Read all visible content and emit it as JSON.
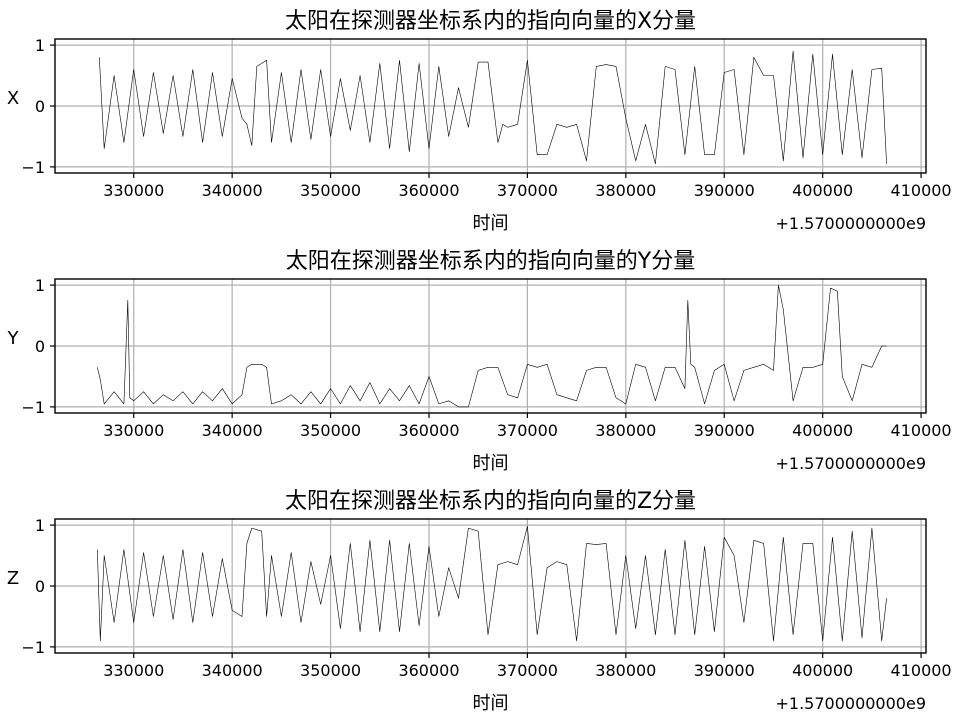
{
  "chart_data": [
    {
      "type": "line",
      "title": "太阳在探测器坐标系内的指向向量的X分量",
      "xlabel": "时间",
      "ylabel": "X",
      "x_offset_label": "+1.5700000000e9",
      "xlim": [
        322000,
        410500
      ],
      "ylim": [
        -1.1,
        1.1
      ],
      "xticks": [
        "330000",
        "340000",
        "350000",
        "360000",
        "370000",
        "380000",
        "390000",
        "400000",
        "410000"
      ],
      "yticks": [
        "1",
        "0",
        "−1"
      ],
      "grid": true,
      "line_color": "#000000",
      "series": [
        {
          "x": [
            326500,
            327000,
            328000,
            329000,
            330000,
            331000,
            332000,
            333000,
            334000,
            335000,
            336000,
            337000,
            338000,
            339000,
            340000,
            341000,
            341500,
            342000,
            342500,
            343000,
            343500,
            344000,
            345000,
            346000,
            347000,
            348000,
            349000,
            350000,
            351000,
            352000,
            353000,
            354000,
            355000,
            356000,
            357000,
            358000,
            359000,
            360000,
            361000,
            362000,
            363000,
            364000,
            365000,
            366000,
            367000,
            367500,
            368000,
            369000,
            370000,
            371000,
            372000,
            373000,
            374000,
            375000,
            376000,
            377000,
            378000,
            379000,
            380000,
            381000,
            382000,
            383000,
            384000,
            385000,
            386000,
            387000,
            388000,
            389000,
            390000,
            391000,
            392000,
            393000,
            394000,
            395000,
            396000,
            397000,
            398000,
            399000,
            400000,
            401000,
            402000,
            403000,
            404000,
            405000,
            406000,
            406500
          ],
          "y": [
            0.8,
            -0.7,
            0.5,
            -0.6,
            0.6,
            -0.5,
            0.55,
            -0.45,
            0.5,
            -0.5,
            0.6,
            -0.6,
            0.55,
            -0.5,
            0.45,
            -0.2,
            -0.3,
            -0.65,
            0.65,
            0.7,
            0.75,
            -0.6,
            0.55,
            -0.6,
            0.6,
            -0.55,
            0.6,
            -0.5,
            0.45,
            -0.4,
            0.5,
            -0.6,
            0.7,
            -0.7,
            0.75,
            -0.75,
            0.7,
            -0.7,
            0.65,
            -0.5,
            0.3,
            -0.35,
            0.72,
            0.72,
            -0.6,
            -0.3,
            -0.35,
            -0.3,
            0.75,
            -0.8,
            -0.8,
            -0.3,
            -0.35,
            -0.3,
            -0.9,
            0.65,
            0.68,
            0.65,
            -0.2,
            -0.9,
            -0.3,
            -0.95,
            0.65,
            0.6,
            -0.8,
            0.65,
            -0.8,
            -0.8,
            0.55,
            0.6,
            -0.8,
            0.8,
            0.5,
            0.5,
            -0.9,
            0.9,
            -0.85,
            0.85,
            -0.8,
            0.85,
            -0.8,
            0.6,
            -0.85,
            0.6,
            0.62,
            -0.95
          ]
        }
      ]
    },
    {
      "type": "line",
      "title": "太阳在探测器坐标系内的指向向量的Y分量",
      "xlabel": "时间",
      "ylabel": "Y",
      "x_offset_label": "+1.5700000000e9",
      "xlim": [
        322000,
        410500
      ],
      "ylim": [
        -1.1,
        1.1
      ],
      "xticks": [
        "330000",
        "340000",
        "350000",
        "360000",
        "370000",
        "380000",
        "390000",
        "400000",
        "410000"
      ],
      "yticks": [
        "1",
        "0",
        "−1"
      ],
      "grid": true,
      "line_color": "#000000",
      "series": [
        {
          "x": [
            326300,
            326600,
            327000,
            328000,
            329000,
            329400,
            329600,
            330000,
            331000,
            332000,
            333000,
            334000,
            335000,
            336000,
            337000,
            338000,
            339000,
            340000,
            341000,
            341500,
            342000,
            343000,
            343500,
            344000,
            345000,
            346000,
            347000,
            348000,
            349000,
            350000,
            351000,
            352000,
            353000,
            354000,
            355000,
            356000,
            357000,
            358000,
            359000,
            360000,
            361000,
            362000,
            363000,
            364000,
            365000,
            366000,
            367000,
            368000,
            369000,
            370000,
            371000,
            372000,
            373000,
            374000,
            375000,
            376000,
            377000,
            378000,
            379000,
            380000,
            381000,
            382000,
            383000,
            384000,
            385000,
            386000,
            386300,
            386600,
            387000,
            388000,
            389000,
            390000,
            391000,
            392000,
            393000,
            394000,
            395000,
            395500,
            396000,
            397000,
            398000,
            399000,
            400000,
            400800,
            401500,
            402000,
            403000,
            404000,
            405000,
            406000,
            406500
          ],
          "y": [
            -0.35,
            -0.55,
            -0.95,
            -0.75,
            -0.95,
            0.75,
            -0.85,
            -0.9,
            -0.75,
            -0.95,
            -0.8,
            -0.9,
            -0.75,
            -0.95,
            -0.75,
            -0.9,
            -0.7,
            -0.95,
            -0.8,
            -0.35,
            -0.3,
            -0.3,
            -0.35,
            -0.95,
            -0.9,
            -0.8,
            -0.95,
            -0.75,
            -0.95,
            -0.7,
            -0.95,
            -0.65,
            -0.9,
            -0.6,
            -0.95,
            -0.7,
            -0.9,
            -0.65,
            -0.95,
            -0.5,
            -0.95,
            -0.9,
            -1.0,
            -1.0,
            -0.4,
            -0.35,
            -0.35,
            -0.8,
            -0.85,
            -0.3,
            -0.35,
            -0.3,
            -0.8,
            -0.85,
            -0.9,
            -0.4,
            -0.35,
            -0.35,
            -0.85,
            -0.95,
            -0.3,
            -0.35,
            -0.9,
            -0.35,
            -0.35,
            -0.7,
            0.75,
            -0.3,
            -0.35,
            -0.95,
            -0.4,
            -0.3,
            -0.9,
            -0.4,
            -0.35,
            -0.3,
            -0.4,
            1.0,
            0.6,
            -0.9,
            -0.35,
            -0.35,
            -0.3,
            0.95,
            0.9,
            -0.5,
            -0.9,
            -0.3,
            -0.35,
            0.0,
            0.0
          ]
        }
      ]
    },
    {
      "type": "line",
      "title": "太阳在探测器坐标系内的指向向量的Z分量",
      "xlabel": "时间",
      "ylabel": "Z",
      "x_offset_label": "+1.5700000000e9",
      "xlim": [
        322000,
        410500
      ],
      "ylim": [
        -1.1,
        1.1
      ],
      "xticks": [
        "330000",
        "340000",
        "350000",
        "360000",
        "370000",
        "380000",
        "390000",
        "400000",
        "410000"
      ],
      "yticks": [
        "1",
        "0",
        "−1"
      ],
      "grid": true,
      "line_color": "#000000",
      "series": [
        {
          "x": [
            326300,
            326600,
            327000,
            328000,
            329000,
            330000,
            331000,
            332000,
            333000,
            334000,
            335000,
            336000,
            337000,
            338000,
            339000,
            340000,
            341000,
            341500,
            342000,
            343000,
            343500,
            344000,
            345000,
            346000,
            347000,
            348000,
            349000,
            350000,
            351000,
            352000,
            353000,
            354000,
            355000,
            356000,
            357000,
            358000,
            359000,
            360000,
            361000,
            362000,
            363000,
            364000,
            365000,
            366000,
            367000,
            368000,
            369000,
            370000,
            371000,
            372000,
            373000,
            374000,
            375000,
            376000,
            377000,
            378000,
            379000,
            380000,
            381000,
            382000,
            383000,
            384000,
            385000,
            386000,
            387000,
            388000,
            389000,
            390000,
            391000,
            392000,
            393000,
            394000,
            395000,
            396000,
            397000,
            398000,
            399000,
            400000,
            401000,
            402000,
            403000,
            404000,
            405000,
            406000,
            406500
          ],
          "y": [
            0.6,
            -0.9,
            0.5,
            -0.6,
            0.6,
            -0.6,
            0.55,
            -0.5,
            0.5,
            -0.55,
            0.6,
            -0.6,
            0.55,
            -0.5,
            0.45,
            -0.4,
            -0.5,
            0.7,
            0.95,
            0.9,
            -0.5,
            0.5,
            -0.5,
            0.55,
            -0.6,
            0.4,
            -0.3,
            0.5,
            -0.7,
            0.7,
            -0.75,
            0.75,
            -0.75,
            0.75,
            -0.75,
            0.7,
            -0.65,
            0.65,
            -0.5,
            0.3,
            -0.2,
            0.95,
            0.9,
            -0.8,
            0.35,
            0.4,
            0.35,
            0.98,
            -0.8,
            0.3,
            0.4,
            0.35,
            -0.9,
            0.7,
            0.68,
            0.7,
            -0.8,
            0.5,
            -0.7,
            0.5,
            -0.8,
            0.6,
            -0.8,
            0.75,
            -0.8,
            0.65,
            -0.75,
            0.8,
            0.5,
            -0.6,
            0.75,
            0.7,
            -0.9,
            0.8,
            -0.8,
            0.7,
            0.7,
            -0.9,
            0.8,
            -0.9,
            0.9,
            -0.85,
            0.95,
            -0.9,
            -0.2
          ]
        }
      ]
    }
  ]
}
